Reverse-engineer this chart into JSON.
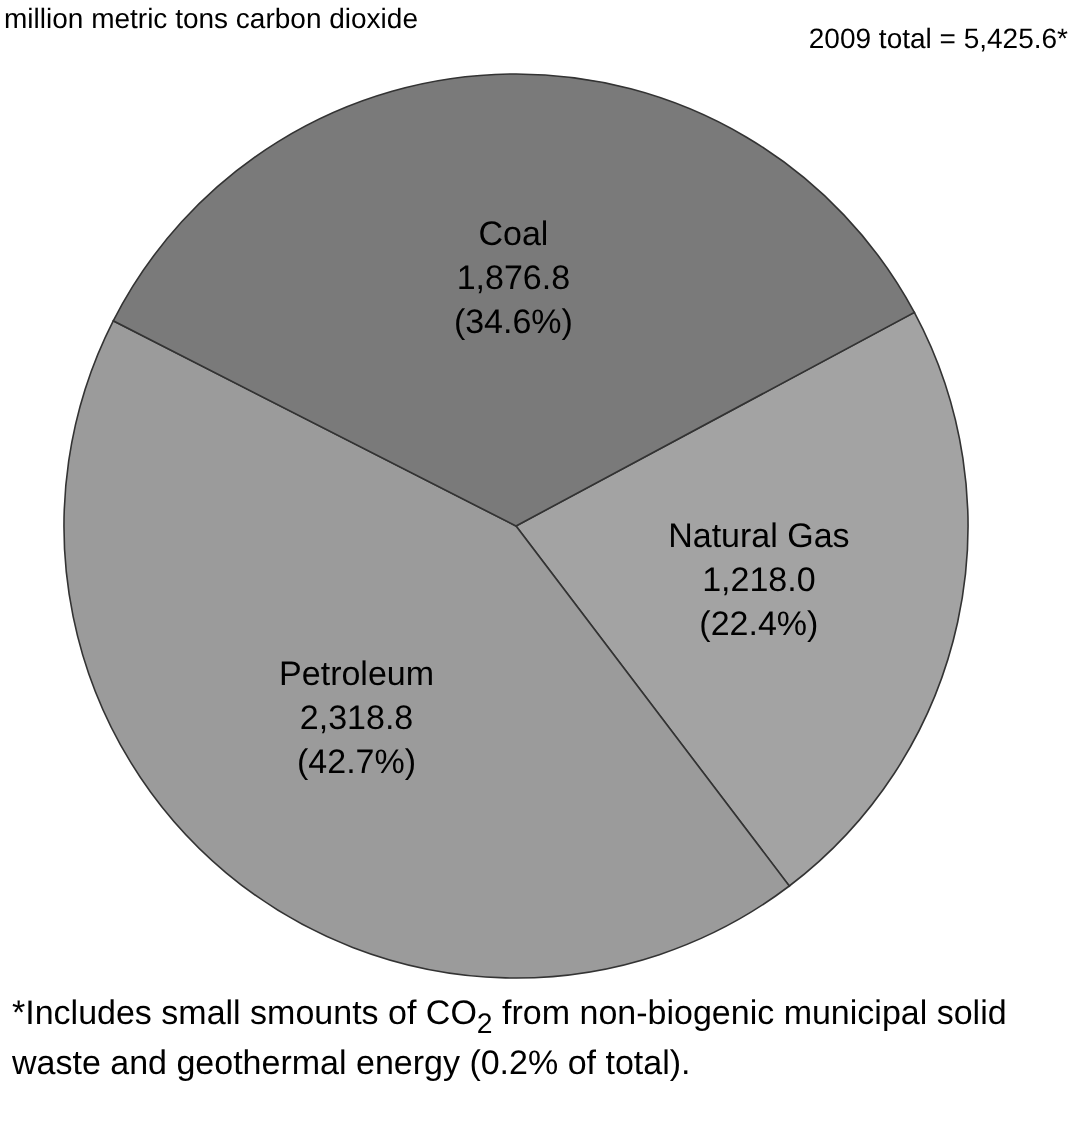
{
  "chart_data": {
    "type": "pie",
    "title": "million metric tons carbon dioxide",
    "categories": [
      "Natural Gas",
      "Petroleum",
      "Coal"
    ],
    "values": [
      1218.0,
      2318.8,
      1876.8
    ],
    "value_labels": [
      "1,218.0\n(22.4%)",
      "2,318.8\n(42.7%)",
      "1,876.8\n(34.6%)"
    ],
    "colors": [
      "#a3a3a3",
      "#9b9b9b",
      "#7a7a7a"
    ],
    "annotations": [
      "2009 total = 5,425.6*",
      "*Includes small smounts of CO$_{2}$ from non-biogenic municipal solid waste and geothermal energy (0.2% of total)."
    ]
  }
}
